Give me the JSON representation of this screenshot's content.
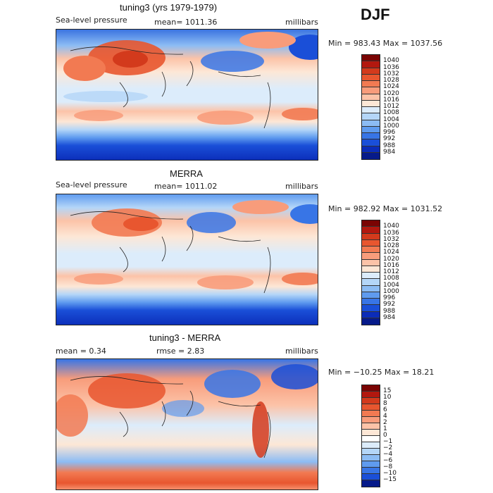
{
  "season": "DJF",
  "panels": [
    {
      "title": "tuning3 (yrs 1979-1979)",
      "left_text": "Sea-level pressure",
      "mean_text": "mean= 1011.36",
      "units": "millibars",
      "minmax": "Min = 983.43 Max = 1037.56",
      "colorbar": {
        "labels": [
          "1040",
          "1036",
          "1032",
          "1028",
          "1024",
          "1020",
          "1016",
          "1012",
          "1008",
          "1004",
          "1000",
          "996",
          "992",
          "988",
          "984"
        ],
        "colors": [
          "#7a0403",
          "#b2180f",
          "#d33a1c",
          "#e8562f",
          "#f27a52",
          "#f89c7b",
          "#fcc3a8",
          "#fde7d6",
          "#dcecfb",
          "#b4d6f8",
          "#8cbcf4",
          "#5f9bef",
          "#3875e6",
          "#1a4fd8",
          "#0b2cb8",
          "#061a8a"
        ]
      }
    },
    {
      "title": "MERRA",
      "left_text": "Sea-level pressure",
      "mean_text": "mean= 1011.02",
      "units": "millibars",
      "minmax": "Min = 982.92 Max = 1031.52",
      "colorbar": {
        "labels": [
          "1040",
          "1036",
          "1032",
          "1028",
          "1024",
          "1020",
          "1016",
          "1012",
          "1008",
          "1004",
          "1000",
          "996",
          "992",
          "988",
          "984"
        ],
        "colors": [
          "#7a0403",
          "#b2180f",
          "#d33a1c",
          "#e8562f",
          "#f27a52",
          "#f89c7b",
          "#fcc3a8",
          "#fde7d6",
          "#dcecfb",
          "#b4d6f8",
          "#8cbcf4",
          "#5f9bef",
          "#3875e6",
          "#1a4fd8",
          "#0b2cb8",
          "#061a8a"
        ]
      }
    },
    {
      "title": "tuning3 - MERRA",
      "left_text": "mean =    0.34",
      "mean_text": "rmse =    2.83",
      "units": "millibars",
      "minmax": "Min = −10.25 Max =   18.21",
      "colorbar": {
        "labels": [
          "15",
          "10",
          "8",
          "6",
          "4",
          "2",
          "1",
          "0",
          "−1",
          "−2",
          "−4",
          "−6",
          "−8",
          "−10",
          "−15"
        ],
        "colors": [
          "#7a0403",
          "#b2180f",
          "#d33a1c",
          "#e8562f",
          "#f27a52",
          "#f89c7b",
          "#fcc3a8",
          "#fde7d6",
          "#ffffff",
          "#dcecfb",
          "#b4d6f8",
          "#8cbcf4",
          "#5f9bef",
          "#3875e6",
          "#1a4fd8",
          "#061a8a"
        ]
      }
    }
  ]
}
